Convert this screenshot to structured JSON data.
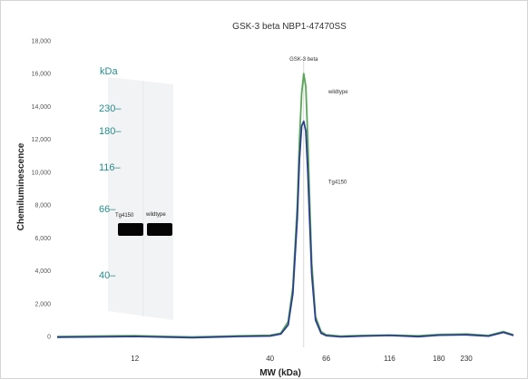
{
  "chart_data": {
    "type": "line",
    "title": "GSK-3 beta  NBP1-47470SS",
    "xlabel": "MW (kDa)",
    "ylabel": "Chemiluminescence",
    "ylim": [
      0,
      18000
    ],
    "yticks": [
      0,
      2000,
      4000,
      6000,
      8000,
      10000,
      12000,
      14000,
      16000,
      18000
    ],
    "ytick_labels": [
      "0",
      "2,000",
      "4,000",
      "6,000",
      "8,000",
      "10,000",
      "12,000",
      "14,000",
      "16,000",
      "18,000"
    ],
    "xlim": [
      6,
      350
    ],
    "xscale": "log",
    "xticks": [
      12,
      40,
      66,
      116,
      180,
      230
    ],
    "xtick_labels": [
      "12",
      "40",
      "66",
      "116",
      "180",
      "230"
    ],
    "grid": false,
    "colors": {
      "wildtype": "#5aa55a",
      "Tg4150": "#2c3f8c"
    },
    "annotations": [
      {
        "text": "GSK-3 beta",
        "x": 54
      },
      {
        "text": "wildtype",
        "x": 62,
        "y": 14800
      },
      {
        "text": "Tg4150",
        "x": 62,
        "y": 9300
      }
    ],
    "series": [
      {
        "name": "wildtype",
        "x": [
          6,
          12,
          20,
          30,
          40,
          44,
          47,
          49,
          51,
          52,
          53,
          54,
          55,
          56,
          57,
          58,
          60,
          63,
          66,
          75,
          90,
          116,
          150,
          180,
          230,
          280,
          320,
          350
        ],
        "y": [
          0,
          50,
          -30,
          40,
          80,
          200,
          900,
          3000,
          8000,
          12000,
          14800,
          16000,
          15200,
          12000,
          8000,
          4500,
          1200,
          300,
          100,
          20,
          60,
          90,
          40,
          120,
          150,
          60,
          300,
          100
        ]
      },
      {
        "name": "Tg4150",
        "x": [
          6,
          12,
          20,
          30,
          40,
          44,
          47,
          49,
          51,
          52,
          53,
          54,
          55,
          56,
          57,
          58,
          60,
          63,
          66,
          75,
          90,
          116,
          150,
          180,
          230,
          280,
          320,
          350
        ],
        "y": [
          -50,
          0,
          -80,
          0,
          30,
          150,
          700,
          2600,
          7200,
          10800,
          12800,
          13100,
          12500,
          10000,
          6800,
          3800,
          1000,
          200,
          50,
          -20,
          20,
          60,
          -10,
          80,
          100,
          20,
          250,
          60
        ]
      }
    ]
  },
  "blot": {
    "unit_label": "kDa",
    "markers": [
      {
        "label": "230",
        "kda": 230
      },
      {
        "label": "180",
        "kda": 180
      },
      {
        "label": "116",
        "kda": 116
      },
      {
        "label": "66",
        "kda": 66
      },
      {
        "label": "40",
        "kda": 40
      }
    ],
    "lanes": [
      "Tg4150",
      "wildtype"
    ]
  }
}
